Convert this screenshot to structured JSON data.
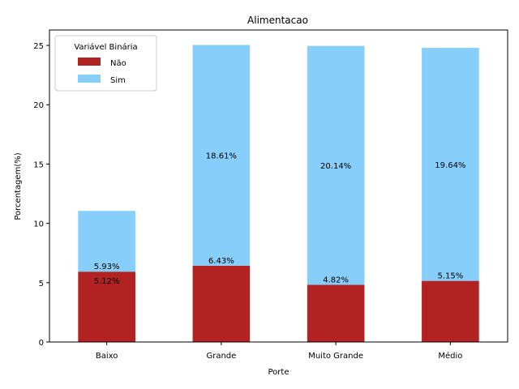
{
  "chart_data": {
    "type": "bar",
    "stacked": true,
    "title": "Alimentacao",
    "xlabel": "Porte",
    "ylabel": "Porcentagem(%)",
    "categories": [
      "Baixo",
      "Grande",
      "Muito Grande",
      "Médio"
    ],
    "ylim": [
      0,
      26.3
    ],
    "yticks": [
      0,
      5,
      10,
      15,
      20,
      25
    ],
    "grid": false,
    "legend": {
      "title": "Variável Binária",
      "placement": "top-left"
    },
    "series": [
      {
        "name": "Não",
        "color": "#b22222",
        "values": [
          5.93,
          6.43,
          4.82,
          5.15
        ],
        "labels": [
          "5.93%",
          "6.43%",
          "4.82%",
          "5.15%"
        ]
      },
      {
        "name": "Sim",
        "color": "#87cefa",
        "values": [
          5.12,
          18.61,
          20.14,
          19.64
        ],
        "labels": [
          "5.12%",
          "18.61%",
          "20.14%",
          "19.64%"
        ]
      }
    ]
  }
}
